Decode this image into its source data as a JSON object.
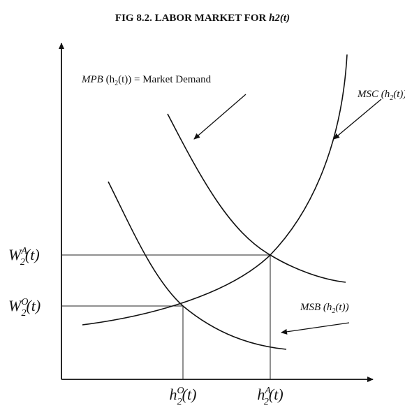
{
  "header": {
    "title": "FIG 8.2. LABOR MARKET FOR",
    "title_variable": "h2(t)"
  },
  "curves": {
    "mpb": {
      "name": "MPB",
      "arg": "(h",
      "arg_sub": "2",
      "arg_end": "(t))",
      "suffix": "= Market Demand"
    },
    "msc": {
      "name": "MSC",
      "arg": "(h",
      "arg_sub": "2",
      "arg_end": "(t))"
    },
    "msb": {
      "name": "MSB",
      "arg": "(h",
      "arg_sub": "2",
      "arg_end": "(t))"
    }
  },
  "y_labels": [
    {
      "base": "W",
      "sub": "2",
      "sup": "A",
      "tail": "(t)"
    },
    {
      "base": "W",
      "sub": "2",
      "sup": "O",
      "tail": "(t)"
    }
  ],
  "x_labels": [
    {
      "base": "h",
      "sub": "2",
      "sup": "O",
      "tail": "(t)"
    },
    {
      "base": "h",
      "sub": "2",
      "sup": "A",
      "tail": "(t)"
    }
  ]
}
